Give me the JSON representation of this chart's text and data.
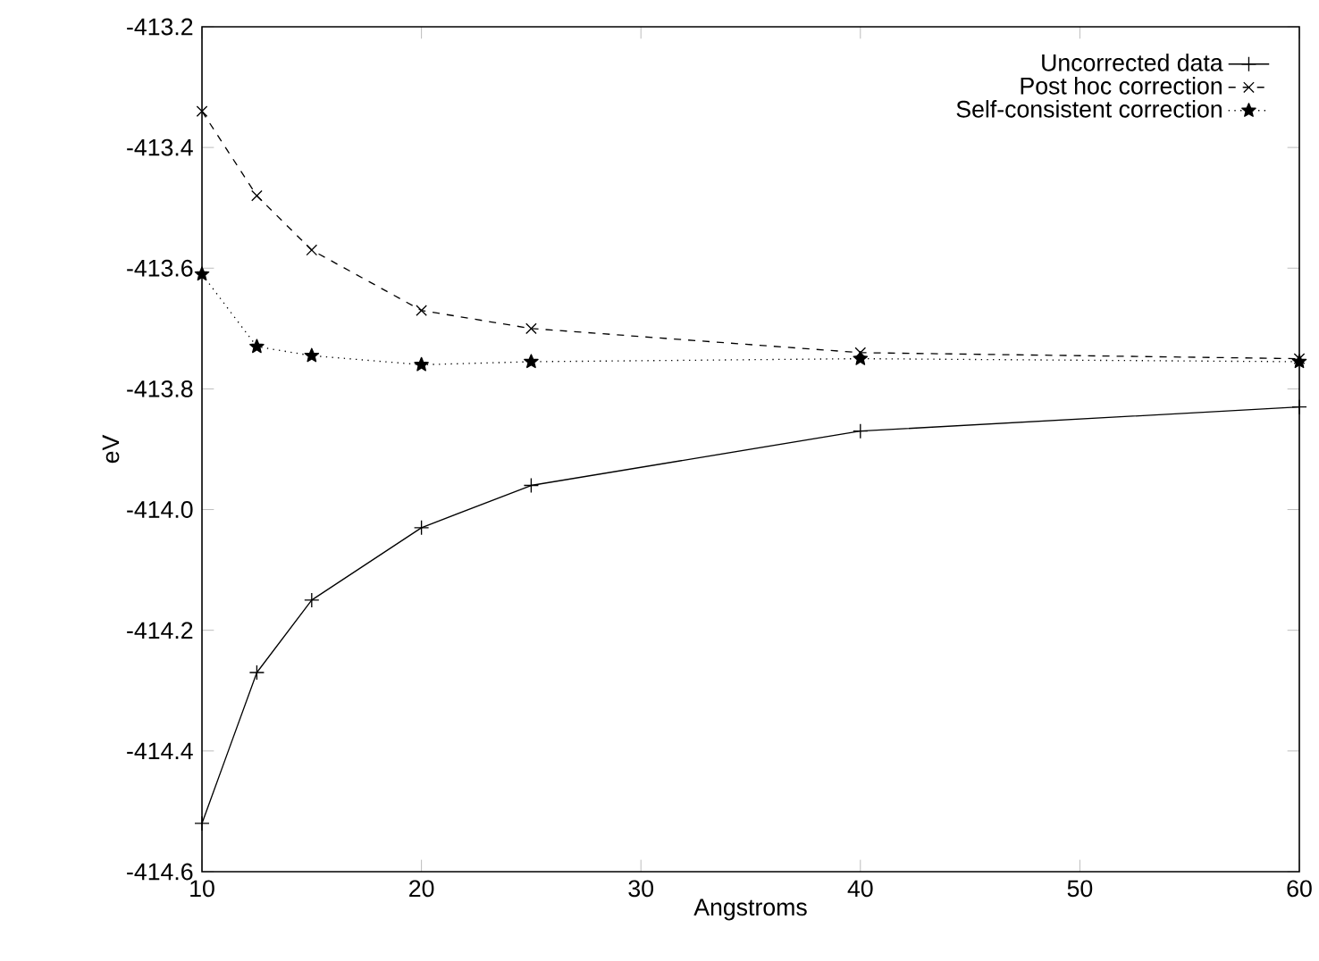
{
  "chart_data": {
    "type": "line",
    "xlabel": "Angstroms",
    "ylabel": "eV",
    "x": [
      10,
      12.5,
      15,
      20,
      25,
      40,
      60
    ],
    "series": [
      {
        "name": "Uncorrected data",
        "color": "#000000",
        "marker": "plus",
        "line_style": "solid",
        "values": [
          -414.52,
          -414.27,
          -414.15,
          -414.03,
          -413.96,
          -413.87,
          -413.83
        ]
      },
      {
        "name": "Post hoc correction",
        "color": "#000000",
        "marker": "cross",
        "line_style": "dashed",
        "values": [
          -413.34,
          -413.48,
          -413.57,
          -413.67,
          -413.7,
          -413.74,
          -413.75
        ]
      },
      {
        "name": "Self-consistent correction",
        "color": "#000000",
        "marker": "star",
        "line_style": "dotted",
        "values": [
          -413.61,
          -413.73,
          -413.745,
          -413.76,
          -413.755,
          -413.75,
          -413.755
        ]
      }
    ],
    "xlim": [
      10,
      60
    ],
    "xticks": [
      10,
      20,
      30,
      40,
      50,
      60
    ],
    "ylim": [
      -414.6,
      -413.2
    ],
    "yticks": [
      -414.6,
      -414.4,
      -414.2,
      {
        "value": -414,
        "label": "-414.0"
      },
      -413.8,
      -413.6,
      -413.4,
      -413.2
    ],
    "grid": false,
    "legend": "top right"
  }
}
